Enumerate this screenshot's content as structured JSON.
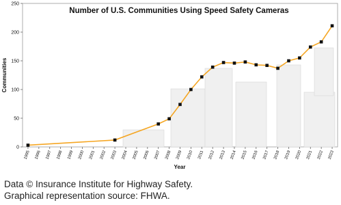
{
  "chart_data": {
    "type": "line",
    "title": "Number of U.S. Communities Using Speed Safety Cameras",
    "x_label": "Year",
    "y_label": "Communities",
    "x": [
      1995,
      2003,
      2007,
      2008,
      2009,
      2010,
      2011,
      2012,
      2013,
      2014,
      2015,
      2016,
      2017,
      2018,
      2019,
      2020,
      2021,
      2022,
      2023
    ],
    "values": [
      3,
      12,
      40,
      49,
      74,
      100,
      122,
      139,
      147,
      146,
      148,
      143,
      142,
      137,
      150,
      155,
      174,
      183,
      211
    ],
    "color": "#f5a623",
    "marker_color": "#111111",
    "xlim": [
      1994.5,
      2023.5
    ],
    "xticks": [
      1995,
      1996,
      1997,
      1998,
      1999,
      2000,
      2001,
      2002,
      2003,
      2004,
      2005,
      2006,
      2007,
      2008,
      2009,
      2010,
      2011,
      2012,
      2013,
      2014,
      2015,
      2016,
      2017,
      2018,
      2019,
      2020,
      2021,
      2022,
      2023
    ],
    "ylim": [
      0,
      250
    ],
    "yticks": [
      0,
      50,
      100,
      150,
      200,
      250
    ]
  },
  "notes": [
    "Data © Insurance Institute for Highway Safety.",
    "Graphical representation source: FHWA."
  ]
}
